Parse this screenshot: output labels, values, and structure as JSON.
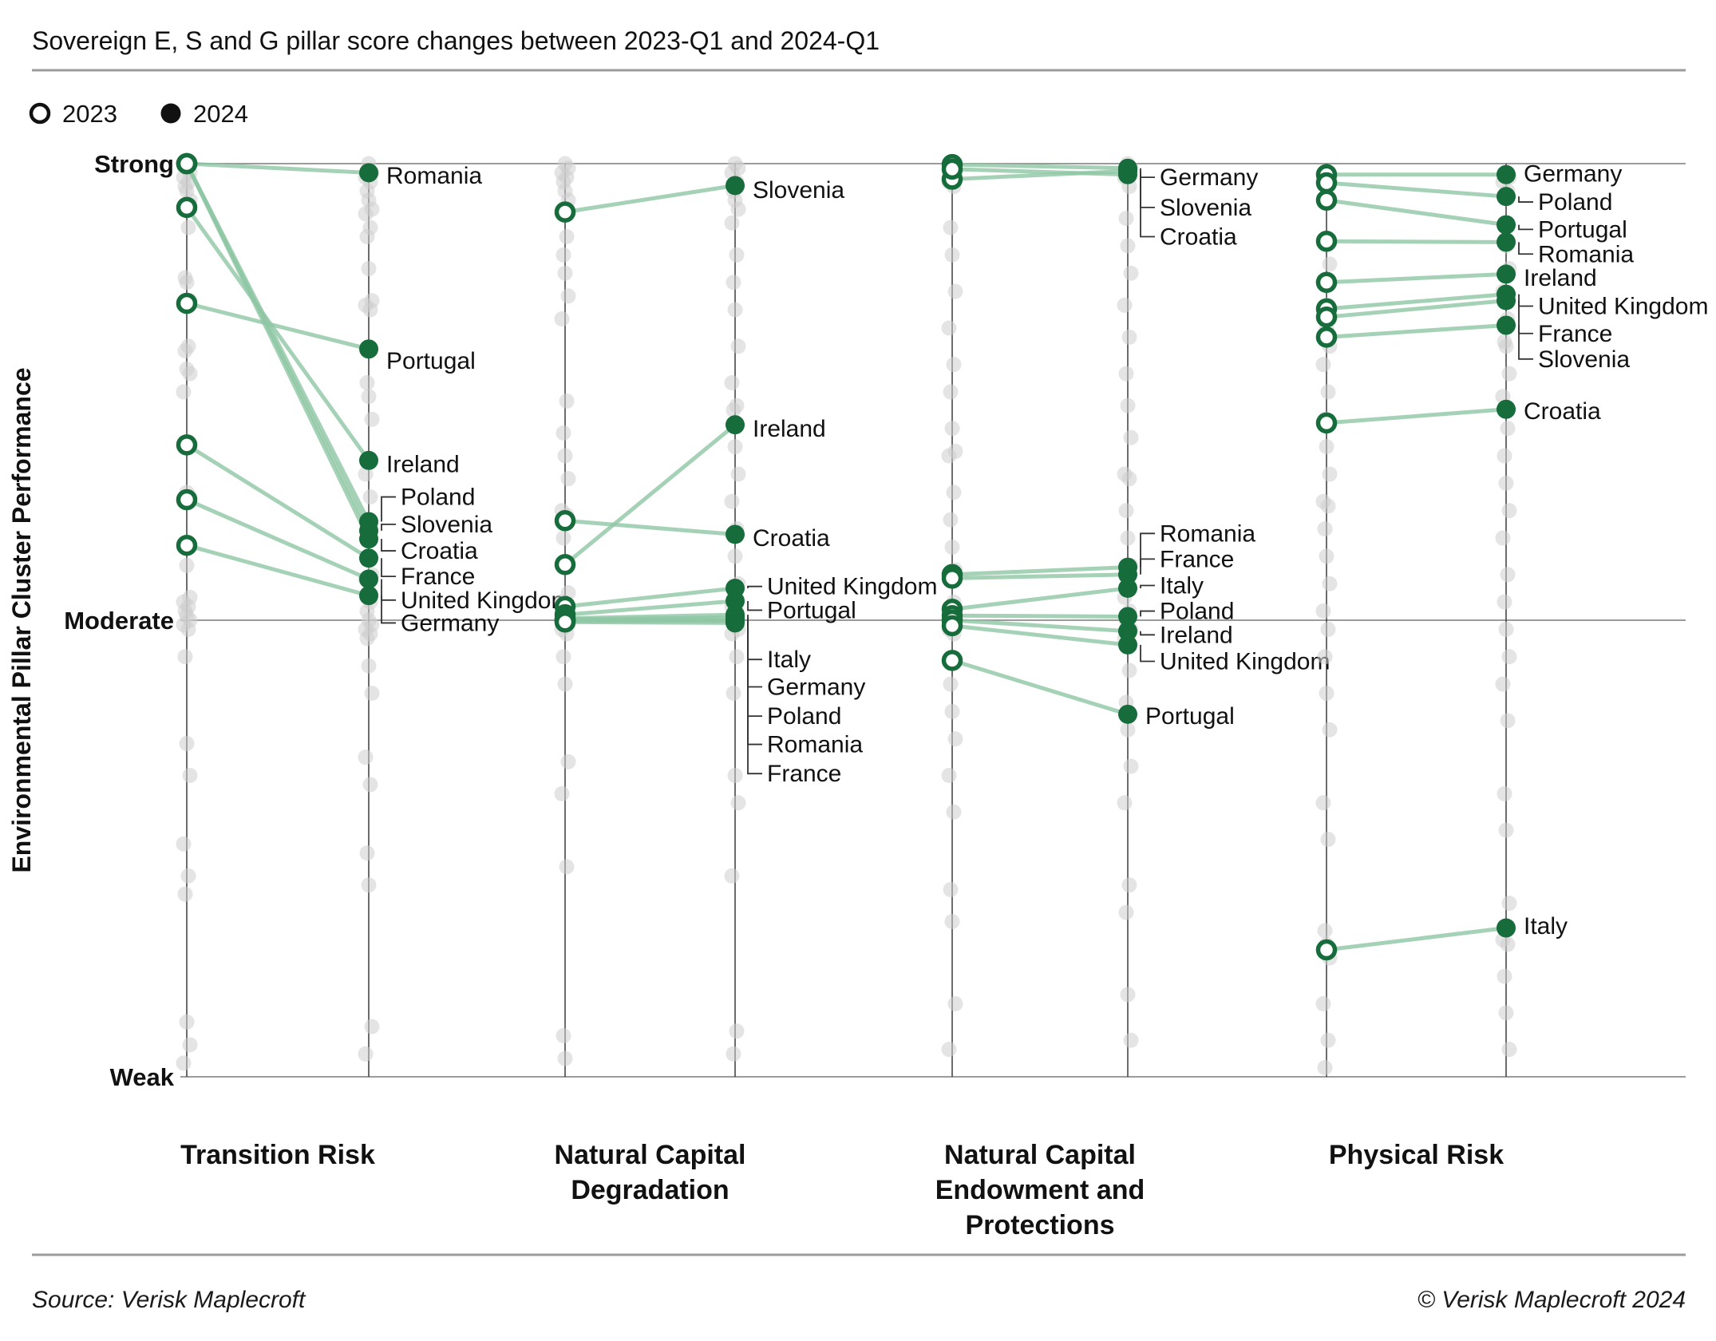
{
  "header": {
    "title": "Sovereign E, S and G pillar score changes between 2023-Q1 and 2024-Q1",
    "legend": [
      {
        "label": "2023",
        "marker": "open-circle"
      },
      {
        "label": "2024",
        "marker": "filled-circle"
      }
    ]
  },
  "footer": {
    "source": "Source: Verisk Maplecroft",
    "copyright": "© Verisk Maplecroft 2024"
  },
  "colors": {
    "dot_2024": "#176c3b",
    "dot_2023_stroke": "#176c3b",
    "connector": "#8fc7a4",
    "background_dot": "#cdcdcd",
    "axis_line": "#3c3c3c",
    "reference_line": "#9b9b9b",
    "leader_line": "#333333",
    "text": "#111111",
    "rule": "#9b9b9b",
    "legend_marker": "#111111"
  },
  "chart_data": {
    "type": "slope",
    "title": "Sovereign E, S and G pillar score changes between 2023-Q1 and 2024-Q1",
    "ylabel": "Environmental Pillar Cluster Performance",
    "ylim": [
      0,
      10
    ],
    "grid": false,
    "legend_position": "top-left",
    "years": [
      "2023",
      "2024"
    ],
    "yticks": [
      {
        "label": "Strong",
        "value": 10
      },
      {
        "label": "Moderate",
        "value": 5
      },
      {
        "label": "Weak",
        "value": 0
      }
    ],
    "panels": [
      {
        "title_lines": [
          "Transition Risk"
        ],
        "countries": [
          {
            "name": "Romania",
            "v2023": 10.0,
            "v2024": 9.9,
            "label_at": 9.87,
            "leader": false
          },
          {
            "name": "Poland",
            "v2023": 10.0,
            "v2024": 6.08,
            "label_at": 6.35,
            "leader": true
          },
          {
            "name": "Slovenia",
            "v2023": 10.0,
            "v2024": 5.98,
            "label_at": 6.05,
            "leader": true
          },
          {
            "name": "Croatia",
            "v2023": 10.0,
            "v2024": 5.89,
            "label_at": 5.76,
            "leader": true
          },
          {
            "name": "Ireland",
            "v2023": 9.52,
            "v2024": 6.75,
            "label_at": 6.71,
            "leader": false
          },
          {
            "name": "Portugal",
            "v2023": 8.47,
            "v2024": 7.97,
            "label_at": 7.84,
            "leader": false
          },
          {
            "name": "France",
            "v2023": 6.92,
            "v2024": 5.68,
            "label_at": 5.48,
            "leader": true
          },
          {
            "name": "United Kingdom",
            "v2023": 6.32,
            "v2024": 5.45,
            "label_at": 5.22,
            "leader": true
          },
          {
            "name": "Germany",
            "v2023": 5.82,
            "v2024": 5.27,
            "label_at": 4.97,
            "leader": true
          }
        ],
        "background": {
          "y2023": [
            9.95,
            9.9,
            9.85,
            9.8,
            9.75,
            9.7,
            9.6,
            9.5,
            9.3,
            8.75,
            8.7,
            8.5,
            8.45,
            8.0,
            7.95,
            7.75,
            7.7,
            7.5,
            6.95,
            6.9,
            6.4,
            6.35,
            6.3,
            5.85,
            5.8,
            5.6,
            5.25,
            5.2,
            5.15,
            5.1,
            5.05,
            5.0,
            4.95,
            4.9,
            4.6,
            3.65,
            3.3,
            2.55,
            2.2,
            2.0,
            0.6,
            0.35,
            0.15
          ],
          "y2024": [
            10,
            9.9,
            9.85,
            9.8,
            9.7,
            9.6,
            9.5,
            9.45,
            9.3,
            9.2,
            8.85,
            8.5,
            8.45,
            8.4,
            7.6,
            7.45,
            7.2,
            6.6,
            6.35,
            6.05,
            6.0,
            5.5,
            5.45,
            5.2,
            5.1,
            5.0,
            4.95,
            4.9,
            4.85,
            4.8,
            4.5,
            4.2,
            3.5,
            3.2,
            2.45,
            2.1,
            0.55,
            0.25
          ]
        }
      },
      {
        "title_lines": [
          "Natural Capital",
          "Degradation"
        ],
        "countries": [
          {
            "name": "Slovenia",
            "v2023": 9.47,
            "v2024": 9.76,
            "label_at": 9.71,
            "leader": false
          },
          {
            "name": "Ireland",
            "v2023": 5.61,
            "v2024": 7.14,
            "label_at": 7.1,
            "leader": false
          },
          {
            "name": "Croatia",
            "v2023": 6.09,
            "v2024": 5.94,
            "label_at": 5.9,
            "leader": false
          },
          {
            "name": "United Kingdom",
            "v2023": 5.15,
            "v2024": 5.35,
            "label_at": 5.37,
            "leader": true
          },
          {
            "name": "Portugal",
            "v2023": 5.06,
            "v2024": 5.21,
            "label_at": 5.11,
            "leader": true
          },
          {
            "name": "Italy",
            "v2023": 5.02,
            "v2024": 5.06,
            "label_at": 4.57,
            "leader": true
          },
          {
            "name": "Germany",
            "v2023": 5.01,
            "v2024": 5.03,
            "label_at": 4.27,
            "leader": true
          },
          {
            "name": "Poland",
            "v2023": 5.0,
            "v2024": 5.01,
            "label_at": 3.95,
            "leader": true
          },
          {
            "name": "Romania",
            "v2023": 4.99,
            "v2024": 4.99,
            "label_at": 3.64,
            "leader": true
          },
          {
            "name": "France",
            "v2023": 4.98,
            "v2024": 4.97,
            "label_at": 3.32,
            "leader": true
          }
        ],
        "background": {
          "y2023": [
            10,
            9.95,
            9.9,
            9.85,
            9.8,
            9.7,
            9.6,
            9.45,
            9.2,
            9.0,
            8.8,
            8.55,
            8.3,
            7.4,
            7.05,
            6.8,
            6.55,
            6.2,
            6.15,
            5.9,
            5.6,
            5.3,
            5.2,
            5.1,
            5.05,
            5.0,
            4.95,
            4.9,
            4.85,
            4.6,
            4.3,
            3.45,
            3.1,
            2.3,
            0.45,
            0.2
          ],
          "y2024": [
            10,
            9.95,
            9.9,
            9.8,
            9.7,
            9.6,
            9.5,
            9.35,
            9.0,
            8.7,
            8.4,
            8.0,
            7.6,
            7.35,
            7.3,
            6.9,
            6.6,
            6.3,
            6.0,
            5.95,
            5.7,
            5.4,
            5.15,
            5.1,
            5.05,
            5.0,
            4.9,
            4.85,
            4.6,
            4.2,
            3.3,
            3.0,
            2.2,
            0.5,
            0.25
          ]
        }
      },
      {
        "title_lines": [
          "Natural Capital",
          "Endowment and",
          "Protections"
        ],
        "countries": [
          {
            "name": "Germany",
            "v2023": 9.99,
            "v2024": 9.95,
            "label_at": 9.85,
            "leader": true
          },
          {
            "name": "Slovenia",
            "v2023": 9.83,
            "v2024": 9.92,
            "label_at": 9.52,
            "leader": true
          },
          {
            "name": "Croatia",
            "v2023": 9.94,
            "v2024": 9.88,
            "label_at": 9.2,
            "leader": true
          },
          {
            "name": "Romania",
            "v2023": 5.5,
            "v2024": 5.58,
            "label_at": 5.95,
            "leader": true
          },
          {
            "name": "France",
            "v2023": 5.46,
            "v2024": 5.5,
            "label_at": 5.67,
            "leader": true
          },
          {
            "name": "Italy",
            "v2023": 5.12,
            "v2024": 5.35,
            "label_at": 5.38,
            "leader": true
          },
          {
            "name": "Poland",
            "v2023": 5.05,
            "v2024": 5.04,
            "label_at": 5.1,
            "leader": true
          },
          {
            "name": "Ireland",
            "v2023": 5.0,
            "v2024": 4.88,
            "label_at": 4.84,
            "leader": true
          },
          {
            "name": "United Kingdom",
            "v2023": 4.94,
            "v2024": 4.73,
            "label_at": 4.55,
            "leader": true
          },
          {
            "name": "Portugal",
            "v2023": 4.56,
            "v2024": 3.97,
            "label_at": 3.95,
            "leader": false
          }
        ],
        "background": {
          "y2023": [
            10,
            9.9,
            9.8,
            9.75,
            9.3,
            9.0,
            8.6,
            8.2,
            7.8,
            7.5,
            7.1,
            6.85,
            6.8,
            6.4,
            6.1,
            5.8,
            5.55,
            5.5,
            5.2,
            5.1,
            5.05,
            5.0,
            4.9,
            4.85,
            4.3,
            4.0,
            3.7,
            3.3,
            2.9,
            2.05,
            1.7,
            0.8,
            0.3
          ],
          "y2024": [
            10,
            9.95,
            9.85,
            9.75,
            9.4,
            9.1,
            8.8,
            8.45,
            8.1,
            7.7,
            7.35,
            7.0,
            6.6,
            6.55,
            6.2,
            5.9,
            5.6,
            5.25,
            5.1,
            5.0,
            4.95,
            4.9,
            4.8,
            4.45,
            4.1,
            3.8,
            3.4,
            3.0,
            2.1,
            1.8,
            0.9,
            0.4
          ]
        }
      },
      {
        "title_lines": [
          "Physical Risk"
        ],
        "countries": [
          {
            "name": "Germany",
            "v2023": 9.88,
            "v2024": 9.88,
            "label_at": 9.89,
            "leader": false
          },
          {
            "name": "Poland",
            "v2023": 9.79,
            "v2024": 9.64,
            "label_at": 9.58,
            "leader": true
          },
          {
            "name": "Portugal",
            "v2023": 9.6,
            "v2024": 9.33,
            "label_at": 9.28,
            "leader": true
          },
          {
            "name": "Romania",
            "v2023": 9.15,
            "v2024": 9.14,
            "label_at": 9.01,
            "leader": true
          },
          {
            "name": "Ireland",
            "v2023": 8.7,
            "v2024": 8.79,
            "label_at": 8.75,
            "leader": false
          },
          {
            "name": "United Kingdom",
            "v2023": 8.41,
            "v2024": 8.57,
            "label_at": 8.44,
            "leader": true
          },
          {
            "name": "Slovenia",
            "v2023": 8.32,
            "v2024": 8.5,
            "label_at": 7.86,
            "leader": true
          },
          {
            "name": "France",
            "v2023": 8.1,
            "v2024": 8.23,
            "label_at": 8.14,
            "leader": true
          },
          {
            "name": "Croatia",
            "v2023": 7.16,
            "v2024": 7.31,
            "label_at": 7.29,
            "leader": false
          },
          {
            "name": "Italy",
            "v2023": 1.39,
            "v2024": 1.63,
            "label_at": 1.65,
            "leader": false
          }
        ],
        "background": {
          "y2023": [
            9.9,
            9.85,
            9.8,
            9.75,
            9.6,
            9.15,
            8.9,
            8.7,
            8.45,
            8.4,
            8.2,
            8.0,
            7.8,
            7.5,
            7.2,
            6.9,
            6.6,
            6.3,
            6.25,
            6.0,
            5.7,
            5.4,
            5.1,
            4.9,
            4.6,
            4.2,
            3.8,
            3.0,
            2.6,
            1.6,
            1.45,
            1.3,
            0.8,
            0.4,
            0.1
          ],
          "y2024": [
            9.9,
            9.85,
            9.8,
            9.7,
            9.35,
            9.1,
            8.85,
            8.6,
            8.3,
            8.05,
            8.0,
            7.7,
            7.45,
            7.1,
            6.8,
            6.5,
            6.2,
            5.9,
            5.5,
            5.2,
            4.9,
            4.6,
            4.3,
            3.9,
            3.1,
            2.7,
            1.9,
            1.5,
            1.45,
            1.1,
            0.7,
            0.3
          ]
        }
      }
    ]
  }
}
